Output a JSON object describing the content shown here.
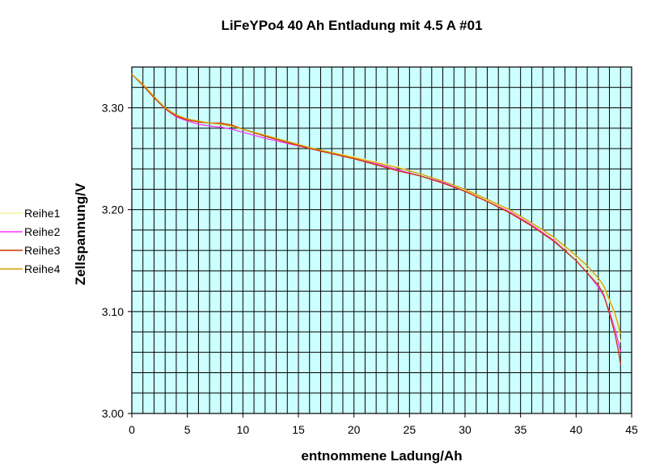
{
  "chart_data": {
    "type": "line",
    "title": "LiFeYPo4 40 Ah Entladung mit 4.5 A #01",
    "xlabel": "entnommene Ladung/Ah",
    "ylabel": "Zellspannung/V",
    "xlim": [
      0,
      45
    ],
    "ylim": [
      3.0,
      3.34
    ],
    "x_ticks": [
      0,
      5,
      10,
      15,
      20,
      25,
      30,
      35,
      40,
      45
    ],
    "y_ticks": [
      3.0,
      3.1,
      3.2,
      3.3
    ],
    "x_tick_labels": [
      "0",
      "5",
      "10",
      "15",
      "20",
      "25",
      "30",
      "35",
      "40",
      "45"
    ],
    "y_tick_labels": [
      "3.00",
      "3.10",
      "3.20",
      "3.30"
    ],
    "grid": true,
    "x_minor_step": 1,
    "y_minor_step": 0.02,
    "plot_background": "#ccffff",
    "legend_position": "left",
    "series": [
      {
        "name": "Reihe1",
        "color": "#f5f0a0",
        "x": [
          0,
          1,
          2,
          3,
          4,
          5,
          6,
          7,
          8,
          9,
          10,
          12,
          14,
          16,
          18,
          20,
          22,
          24,
          26,
          28,
          30,
          32,
          34,
          36,
          38,
          40,
          41,
          42,
          42.5,
          43,
          43.5,
          43.8,
          44
        ],
        "y": [
          3.333,
          3.322,
          3.31,
          3.299,
          3.292,
          3.288,
          3.286,
          3.285,
          3.284,
          3.282,
          3.279,
          3.273,
          3.267,
          3.261,
          3.256,
          3.252,
          3.247,
          3.242,
          3.235,
          3.228,
          3.219,
          3.209,
          3.199,
          3.186,
          3.172,
          3.153,
          3.142,
          3.13,
          3.122,
          3.11,
          3.095,
          3.082,
          3.07
        ]
      },
      {
        "name": "Reihe2",
        "color": "#ff33ff",
        "x": [
          0,
          1,
          2,
          3,
          4,
          5,
          6,
          7,
          8,
          9,
          10,
          12,
          14,
          16,
          18,
          20,
          22,
          24,
          26,
          28,
          30,
          32,
          34,
          36,
          38,
          40,
          41,
          42,
          42.5,
          43,
          43.5,
          43.8,
          44
        ],
        "y": [
          3.333,
          3.322,
          3.31,
          3.299,
          3.291,
          3.287,
          3.284,
          3.282,
          3.281,
          3.279,
          3.276,
          3.27,
          3.265,
          3.26,
          3.255,
          3.25,
          3.245,
          3.239,
          3.233,
          3.227,
          3.218,
          3.208,
          3.198,
          3.185,
          3.17,
          3.15,
          3.138,
          3.124,
          3.115,
          3.1,
          3.083,
          3.07,
          3.06
        ]
      },
      {
        "name": "Reihe3",
        "color": "#cc3300",
        "x": [
          0,
          1,
          2,
          3,
          4,
          5,
          6,
          7,
          8,
          9,
          10,
          12,
          14,
          16,
          18,
          20,
          22,
          24,
          26,
          28,
          30,
          32,
          34,
          36,
          38,
          40,
          41,
          42,
          42.5,
          43,
          43.5,
          43.8,
          44
        ],
        "y": [
          3.333,
          3.322,
          3.31,
          3.299,
          3.292,
          3.288,
          3.286,
          3.285,
          3.285,
          3.283,
          3.279,
          3.272,
          3.266,
          3.26,
          3.255,
          3.25,
          3.244,
          3.238,
          3.233,
          3.226,
          3.218,
          3.208,
          3.197,
          3.184,
          3.169,
          3.15,
          3.138,
          3.126,
          3.116,
          3.098,
          3.078,
          3.062,
          3.048
        ]
      },
      {
        "name": "Reihe4",
        "color": "#d4a000",
        "x": [
          0,
          1,
          2,
          3,
          4,
          5,
          6,
          7,
          8,
          9,
          10,
          12,
          14,
          16,
          18,
          20,
          22,
          24,
          26,
          28,
          30,
          32,
          34,
          36,
          38,
          40,
          41,
          42,
          42.5,
          43,
          43.5,
          43.8,
          44
        ],
        "y": [
          3.333,
          3.323,
          3.311,
          3.3,
          3.293,
          3.289,
          3.287,
          3.285,
          3.284,
          3.282,
          3.279,
          3.273,
          3.267,
          3.261,
          3.256,
          3.251,
          3.246,
          3.241,
          3.235,
          3.228,
          3.22,
          3.21,
          3.2,
          3.187,
          3.173,
          3.155,
          3.145,
          3.133,
          3.125,
          3.112,
          3.098,
          3.087,
          3.078
        ]
      }
    ]
  }
}
